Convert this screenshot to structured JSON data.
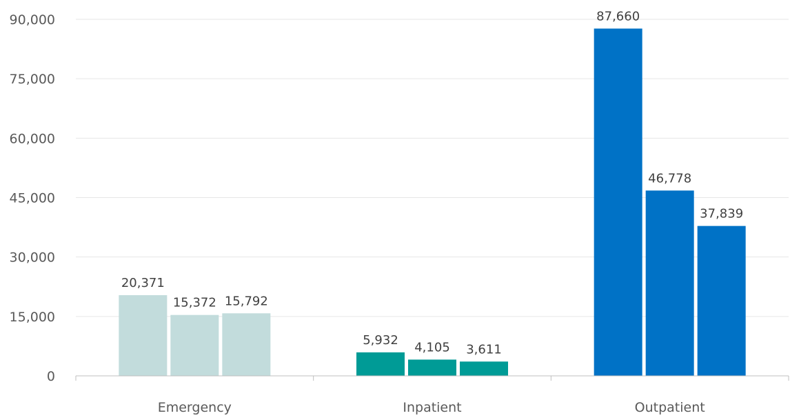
{
  "chart_data": {
    "type": "bar",
    "title": "",
    "xlabel": "",
    "ylabel": "",
    "categories": [
      "Emergency",
      "Inpatient",
      "Outpatient"
    ],
    "series": [
      {
        "values": [
          20371,
          5932,
          87660
        ]
      },
      {
        "values": [
          15372,
          4105,
          46778
        ]
      },
      {
        "values": [
          15792,
          3611,
          37839
        ]
      }
    ],
    "category_colors": [
      "#c2dcdc",
      "#009b96",
      "#0072c6"
    ],
    "ylim": [
      0,
      90000
    ],
    "yticks": [
      0,
      15000,
      30000,
      45000,
      60000,
      75000,
      90000
    ],
    "ytick_labels": [
      "0",
      "15,000",
      "30,000",
      "45,000",
      "60,000",
      "75,000",
      "90,000"
    ],
    "data_labels": [
      [
        "20,371",
        "15,372",
        "15,792"
      ],
      [
        "5,932",
        "4,105",
        "3,611"
      ],
      [
        "87,660",
        "46,778",
        "37,839"
      ]
    ],
    "grid": true,
    "legend": "none"
  }
}
